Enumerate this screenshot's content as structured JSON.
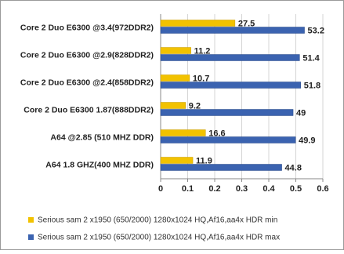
{
  "chart_data": {
    "type": "hbar",
    "categories": [
      "Core 2 Duo E6300 @3.4(972DDR2)",
      "Core 2 Duo E6300 @2.9(828DDR2)",
      "Core 2 Duo E6300 @2.4(858DDR2)",
      "Core 2 Duo E6300 1.87(888DDR2)",
      "A64 @2.85 (510 MHZ DDR)",
      "A64 1.8 GHZ(400 MHZ DDR)"
    ],
    "series": [
      {
        "name": "Serious sam 2 x1950 (650/2000) 1280x1024 HQ,Af16,aa4x HDR min",
        "color": "#f2c200",
        "values": [
          0.275,
          0.112,
          0.107,
          0.092,
          0.166,
          0.119
        ],
        "value_labels": [
          "27.5",
          "11.2",
          "10.7",
          "9.2",
          "16.6",
          "11.9"
        ]
      },
      {
        "name": "Serious sam 2 x1950 (650/2000) 1280x1024 HQ,Af16,aa4x HDR max",
        "color": "#3b63b0",
        "values": [
          0.532,
          0.514,
          0.518,
          0.49,
          0.499,
          0.448
        ],
        "value_labels": [
          "53.2",
          "51.4",
          "51.8",
          "49",
          "49.9",
          "44.8"
        ]
      }
    ],
    "xlim": [
      0,
      0.6
    ],
    "xticks": [
      0,
      0.1,
      0.2,
      0.3,
      0.4,
      0.5,
      0.6
    ],
    "grid": true,
    "legend": "bottom"
  }
}
